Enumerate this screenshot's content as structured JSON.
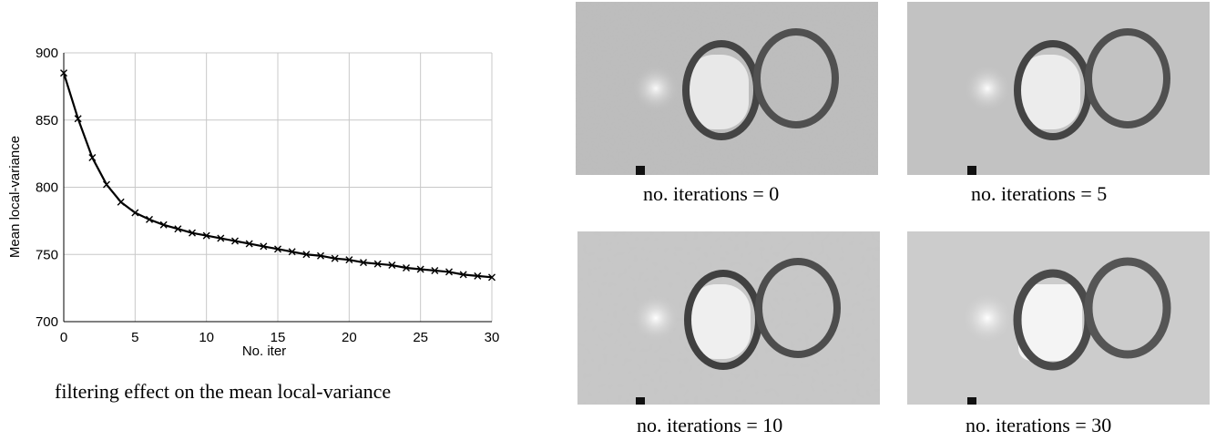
{
  "chart_data": {
    "type": "line",
    "xlabel": "No. iter",
    "ylabel": "Mean local-variance",
    "xlim": [
      0,
      30
    ],
    "ylim": [
      700,
      900
    ],
    "xticks": [
      0,
      5,
      10,
      15,
      20,
      25,
      30
    ],
    "yticks": [
      700,
      750,
      800,
      850,
      900
    ],
    "grid": true,
    "marker": "x",
    "x": [
      0,
      1,
      2,
      3,
      4,
      5,
      6,
      7,
      8,
      9,
      10,
      11,
      12,
      13,
      14,
      15,
      16,
      17,
      18,
      19,
      20,
      21,
      22,
      23,
      24,
      25,
      26,
      27,
      28,
      29,
      30
    ],
    "values": [
      885,
      851,
      822,
      802,
      789,
      781,
      776,
      772,
      769,
      766,
      764,
      762,
      760,
      758,
      756,
      754,
      752,
      750,
      749,
      747,
      746,
      744,
      743,
      742,
      740,
      739,
      738,
      737,
      735,
      734,
      733
    ]
  },
  "captions": {
    "chart": "filtering effect on the mean local-variance",
    "img0": "no. iterations = 0",
    "img5": "no. iterations = 5",
    "img10": "no. iterations = 10",
    "img30": "no. iterations = 30"
  }
}
